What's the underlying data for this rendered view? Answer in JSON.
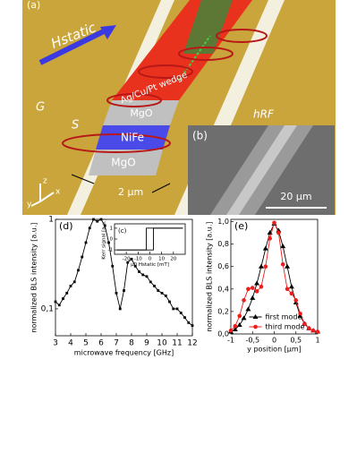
{
  "figure": {
    "a": {
      "panel_label": "(a)",
      "field_label": "Hstatic",
      "g_label": "G",
      "s_label": "S",
      "wedge_label": "Ag/Cu/Pt wedge",
      "mgo_top": "MgO",
      "nife": "NiFe",
      "mgo_bottom": "MgO",
      "scale": "2 µm",
      "hrf_label": "hRF",
      "axis_x": "x",
      "axis_y": "y",
      "axis_z": "z"
    },
    "b": {
      "panel_label": "(b)",
      "scale": "20 µm"
    }
  },
  "chart_data": [
    {
      "type": "line",
      "panel_label": "(d)",
      "xlabel": "microwave frequency [GHz]",
      "ylabel": "normalized BLS intensity [a.u.]",
      "x": [
        3,
        3.25,
        3.5,
        3.75,
        4,
        4.25,
        4.5,
        4.75,
        5,
        5.25,
        5.5,
        5.75,
        6,
        6.25,
        6.5,
        6.75,
        7,
        7.25,
        7.5,
        7.75,
        8,
        8.25,
        8.5,
        8.75,
        9,
        9.25,
        9.5,
        9.75,
        10,
        10.25,
        10.5,
        10.75,
        11,
        11.25,
        11.5,
        11.75,
        12
      ],
      "series": [
        {
          "color": "#000000",
          "marker": "square",
          "values": [
            0.12,
            0.11,
            0.13,
            0.15,
            0.18,
            0.2,
            0.27,
            0.38,
            0.55,
            0.8,
            1.0,
            0.95,
            1.0,
            0.85,
            0.55,
            0.3,
            0.15,
            0.1,
            0.16,
            0.33,
            0.36,
            0.3,
            0.26,
            0.24,
            0.23,
            0.2,
            0.18,
            0.16,
            0.15,
            0.14,
            0.12,
            0.1,
            0.1,
            0.09,
            0.08,
            0.07,
            0.065
          ]
        }
      ],
      "xlim": [
        3,
        12
      ],
      "xticks": [
        3,
        4,
        5,
        6,
        7,
        8,
        9,
        10,
        11,
        12
      ],
      "ylim": [
        0.05,
        1
      ],
      "ylog": true,
      "yticks": [
        {
          "value": 0.1,
          "label": "0,1"
        },
        1
      ]
    },
    {
      "type": "line",
      "panel_label": "(c)",
      "xlabel": "μ0 Hstatic [mT]",
      "ylabel": "Kerr signal [a.u.]",
      "series": [
        {
          "color": "#000000",
          "x": [
            -28,
            3,
            3,
            28
          ],
          "values": [
            -1,
            -1,
            1,
            1
          ]
        },
        {
          "color": "#000000",
          "x": [
            28,
            -3,
            -3,
            -28
          ],
          "values": [
            1,
            1,
            -1,
            -1
          ]
        }
      ],
      "xlim": [
        -30,
        30
      ],
      "xticks": [
        -20,
        -10,
        0,
        10,
        20
      ],
      "ylim": [
        -1.4,
        1.4
      ],
      "yticks": [
        -1,
        0,
        1
      ]
    },
    {
      "type": "line",
      "panel_label": "(e)",
      "xlabel": "y position [µm]",
      "ylabel": "normalized BLS intensity [a.u.]",
      "x": [
        -1,
        -0.9,
        -0.8,
        -0.7,
        -0.6,
        -0.5,
        -0.4,
        -0.3,
        -0.2,
        -0.1,
        0,
        0.1,
        0.2,
        0.3,
        0.4,
        0.5,
        0.6,
        0.7,
        0.8,
        0.9,
        1
      ],
      "series": [
        {
          "name": "first mode",
          "color": "#000000",
          "marker": "triangle",
          "values": [
            0.02,
            0.04,
            0.08,
            0.14,
            0.22,
            0.32,
            0.45,
            0.6,
            0.76,
            0.9,
            0.98,
            0.92,
            0.78,
            0.6,
            0.42,
            0.28,
            0.16,
            0.09,
            0.05,
            0.03,
            0.02
          ]
        },
        {
          "name": "third mode",
          "color": "#ee1c1c",
          "marker": "circle",
          "values": [
            0.03,
            0.07,
            0.16,
            0.3,
            0.4,
            0.41,
            0.38,
            0.42,
            0.6,
            0.85,
            0.99,
            0.9,
            0.62,
            0.4,
            0.36,
            0.3,
            0.18,
            0.09,
            0.05,
            0.03,
            0.02
          ]
        }
      ],
      "xlim": [
        -1,
        1
      ],
      "xticks": [
        -1,
        {
          "value": -0.5,
          "label": "-0,5"
        },
        0,
        {
          "value": 0.5,
          "label": "0,5"
        },
        1
      ],
      "ylim": [
        0,
        1.02
      ],
      "yticks": [
        {
          "value": 0,
          "label": "0,0"
        },
        {
          "value": 0.2,
          "label": "0,2"
        },
        {
          "value": 0.4,
          "label": "0,4"
        },
        {
          "value": 0.6,
          "label": "0,6"
        },
        {
          "value": 0.8,
          "label": "0,8"
        },
        {
          "value": 1,
          "label": "1,0"
        }
      ],
      "legend": "lower center"
    }
  ]
}
